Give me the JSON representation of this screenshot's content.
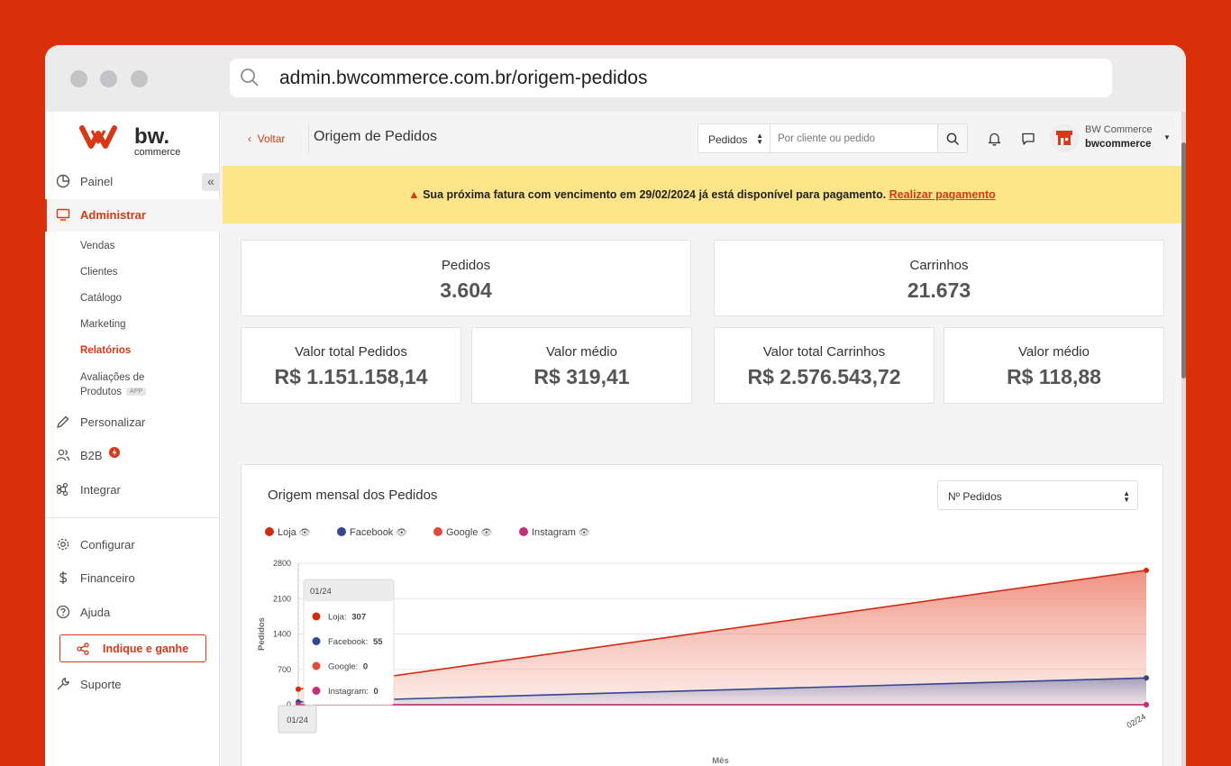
{
  "browser": {
    "url": "admin.bwcommerce.com.br/origem-pedidos"
  },
  "logo": {
    "brand": "bw.",
    "tagline": "commerce"
  },
  "sidebar": {
    "items": [
      {
        "label": "Painel",
        "icon": "pie-chart-icon"
      },
      {
        "label": "Administrar",
        "icon": "monitor-icon"
      },
      {
        "label": "Personalizar",
        "icon": "pencil-icon"
      },
      {
        "label": "B2B",
        "icon": "users-icon"
      },
      {
        "label": "Integrar",
        "icon": "command-icon"
      },
      {
        "label": "Configurar",
        "icon": "gear-icon"
      },
      {
        "label": "Financeiro",
        "icon": "dollar-icon"
      },
      {
        "label": "Ajuda",
        "icon": "help-icon"
      },
      {
        "label": "Suporte",
        "icon": "wrench-icon"
      }
    ],
    "subitems": [
      "Vendas",
      "Clientes",
      "Catálogo",
      "Marketing",
      "Relatórios",
      "Avaliações de",
      "Produtos"
    ],
    "app_badge": "APP",
    "referral_button": "Indique e ganhe"
  },
  "header": {
    "back_label": "Voltar",
    "title": "Origem de Pedidos",
    "search_type": "Pedidos",
    "search_placeholder": "Por cliente ou pedido",
    "user_name": "BW Commerce",
    "user_account": "bwcommerce"
  },
  "banner": {
    "message": "Sua próxima fatura com vencimento em 29/02/2024 já está disponível para pagamento.",
    "link": "Realizar pagamento"
  },
  "stats": {
    "pedidos_label": "Pedidos",
    "pedidos_value": "3.604",
    "carrinhos_label": "Carrinhos",
    "carrinhos_value": "21.673",
    "valor_pedidos_label": "Valor total Pedidos",
    "valor_pedidos_value": "R$ 1.151.158,14",
    "medio_pedidos_label": "Valor médio",
    "medio_pedidos_value": "R$ 319,41",
    "valor_carrinhos_label": "Valor total Carrinhos",
    "valor_carrinhos_value": "R$ 2.576.543,72",
    "medio_carrinhos_label": "Valor médio",
    "medio_carrinhos_value": "R$ 118,88"
  },
  "chart_panel": {
    "title": "Origem mensal dos Pedidos",
    "metric_select": "Nº Pedidos"
  },
  "colors": {
    "accent": "#d73818",
    "loja": "#d42a12",
    "facebook": "#34468f",
    "google": "#e24a3a",
    "instagram": "#c0317a"
  },
  "chart_data": {
    "type": "area",
    "categories": [
      "01/24",
      "02/24"
    ],
    "series": [
      {
        "name": "Loja",
        "values": [
          307,
          2660
        ]
      },
      {
        "name": "Facebook",
        "values": [
          55,
          530
        ]
      },
      {
        "name": "Google",
        "values": [
          0,
          0
        ]
      },
      {
        "name": "Instagram",
        "values": [
          0,
          0
        ]
      }
    ],
    "ylim": [
      0,
      2800
    ],
    "yticks": [
      "0",
      "700",
      "1400",
      "2100",
      "2800"
    ],
    "xlabel": "Mês",
    "ylabel": "Pedidos",
    "grid": true,
    "legend": "top-left",
    "tooltip": {
      "title": "01/24",
      "rows": [
        {
          "label": "Loja:",
          "value": "307"
        },
        {
          "label": "Facebook:",
          "value": "55"
        },
        {
          "label": "Google:",
          "value": "0"
        },
        {
          "label": "Instagram:",
          "value": "0"
        }
      ],
      "axis_label": "01/24"
    }
  }
}
